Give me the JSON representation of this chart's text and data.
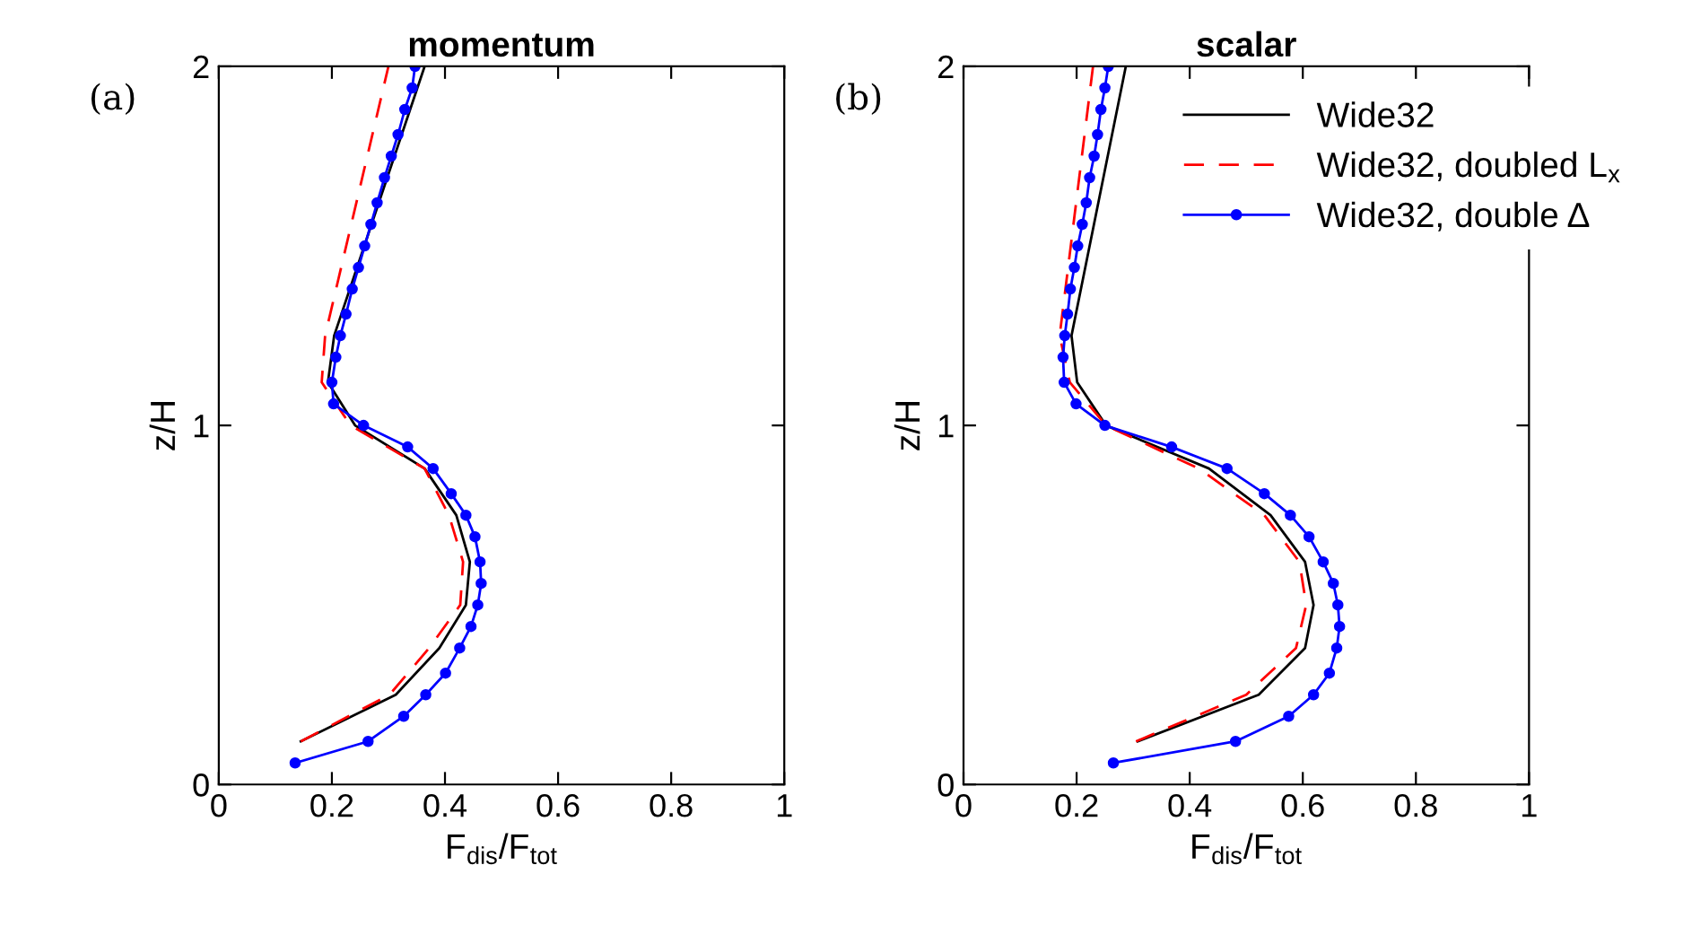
{
  "chart_data": [
    {
      "type": "line",
      "title": "momentum",
      "xlabel": "F$_{dis}$/F$_{tot}$",
      "ylabel": "z/H",
      "annotations": [
        "(a)"
      ],
      "xlim": [
        0,
        1
      ],
      "ylim": [
        0,
        2
      ],
      "xticks": [
        0,
        0.2,
        0.4,
        0.6,
        0.8,
        1
      ],
      "yticks": [
        0,
        1,
        2
      ],
      "grid": false,
      "legend": false,
      "series": [
        {
          "color": "#000000",
          "line_style": "solid",
          "marker": "none",
          "x": [
            0.145,
            0.313,
            0.39,
            0.437,
            0.444,
            0.42,
            0.364,
            0.241,
            0.193,
            0.204,
            0.364
          ],
          "values": [
            0.12,
            0.25,
            0.38,
            0.5,
            0.62,
            0.75,
            0.88,
            1.0,
            1.12,
            1.25,
            2.0
          ]
        },
        {
          "color": "#ff0000",
          "line_style": "dashed",
          "marker": "none",
          "x": [
            0.145,
            0.302,
            0.372,
            0.427,
            0.432,
            0.407,
            0.364,
            0.233,
            0.182,
            0.188,
            0.3
          ],
          "values": [
            0.12,
            0.25,
            0.38,
            0.5,
            0.62,
            0.75,
            0.88,
            1.0,
            1.12,
            1.25,
            2.0
          ]
        },
        {
          "color": "#0000ff",
          "line_style": "solid",
          "marker": "circle",
          "x": [
            0.135,
            0.264,
            0.327,
            0.366,
            0.401,
            0.426,
            0.446,
            0.458,
            0.464,
            0.462,
            0.453,
            0.437,
            0.411,
            0.379,
            0.334,
            0.256,
            0.203,
            0.2,
            0.207,
            0.215,
            0.225,
            0.236,
            0.247,
            0.258,
            0.269,
            0.28,
            0.293,
            0.305,
            0.317,
            0.329,
            0.342,
            0.347
          ],
          "values": [
            0.06,
            0.12,
            0.19,
            0.25,
            0.31,
            0.38,
            0.44,
            0.5,
            0.56,
            0.62,
            0.69,
            0.75,
            0.81,
            0.88,
            0.94,
            1.0,
            1.06,
            1.12,
            1.19,
            1.25,
            1.31,
            1.38,
            1.44,
            1.5,
            1.56,
            1.62,
            1.69,
            1.75,
            1.81,
            1.88,
            1.94,
            2.0
          ]
        }
      ]
    },
    {
      "type": "line",
      "title": "scalar",
      "xlabel": "F$_{dis}$/F$_{tot}$",
      "ylabel": "z/H",
      "annotations": [
        "(b)"
      ],
      "xlim": [
        0,
        1
      ],
      "ylim": [
        0,
        2
      ],
      "xticks": [
        0,
        0.2,
        0.4,
        0.6,
        0.8,
        1
      ],
      "yticks": [
        0,
        1,
        2
      ],
      "grid": false,
      "legend": "top right",
      "series": [
        {
          "name": "Wide32",
          "color": "#000000",
          "line_style": "solid",
          "marker": "none",
          "x": [
            0.308,
            0.522,
            0.604,
            0.619,
            0.604,
            0.543,
            0.434,
            0.252,
            0.201,
            0.191,
            0.287
          ],
          "values": [
            0.12,
            0.25,
            0.38,
            0.5,
            0.62,
            0.75,
            0.88,
            1.0,
            1.12,
            1.25,
            2.0
          ]
        },
        {
          "name": "Wide32, doubled L$_{x}$",
          "color": "#ff0000",
          "line_style": "dashed",
          "marker": "none",
          "x": [
            0.305,
            0.5,
            0.588,
            0.606,
            0.594,
            0.532,
            0.416,
            0.252,
            0.188,
            0.17,
            0.229
          ],
          "values": [
            0.12,
            0.25,
            0.38,
            0.5,
            0.62,
            0.75,
            0.88,
            1.0,
            1.12,
            1.25,
            2.0
          ]
        },
        {
          "name": "Wide32, double Δ",
          "color": "#0000ff",
          "line_style": "solid",
          "marker": "circle",
          "x": [
            0.265,
            0.481,
            0.575,
            0.619,
            0.647,
            0.66,
            0.665,
            0.662,
            0.654,
            0.636,
            0.611,
            0.578,
            0.532,
            0.466,
            0.368,
            0.25,
            0.199,
            0.178,
            0.176,
            0.179,
            0.184,
            0.189,
            0.196,
            0.202,
            0.21,
            0.217,
            0.223,
            0.231,
            0.237,
            0.243,
            0.25,
            0.256
          ],
          "values": [
            0.06,
            0.12,
            0.19,
            0.25,
            0.31,
            0.38,
            0.44,
            0.5,
            0.56,
            0.62,
            0.69,
            0.75,
            0.81,
            0.88,
            0.94,
            1.0,
            1.06,
            1.12,
            1.19,
            1.25,
            1.31,
            1.38,
            1.44,
            1.5,
            1.56,
            1.62,
            1.69,
            1.75,
            1.81,
            1.88,
            1.94,
            2.0
          ]
        }
      ]
    }
  ]
}
